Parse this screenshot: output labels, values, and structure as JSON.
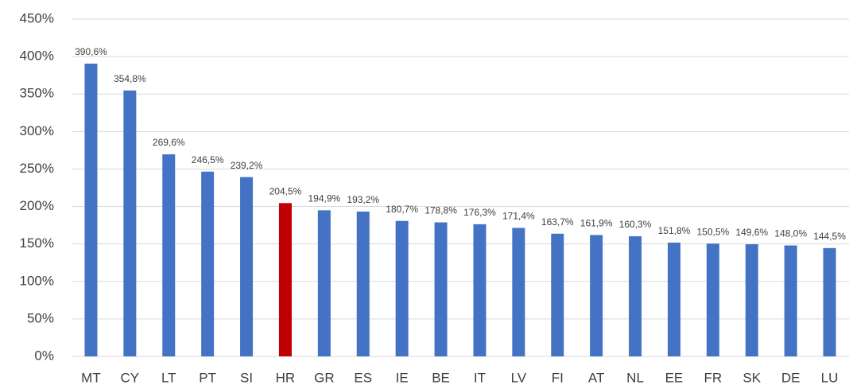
{
  "chart_data": {
    "type": "bar",
    "categories": [
      "MT",
      "CY",
      "LT",
      "PT",
      "SI",
      "HR",
      "GR",
      "ES",
      "IE",
      "BE",
      "IT",
      "LV",
      "FI",
      "AT",
      "NL",
      "EE",
      "FR",
      "SK",
      "DE",
      "LU"
    ],
    "values": [
      390.6,
      354.8,
      269.6,
      246.5,
      239.2,
      204.5,
      194.9,
      193.2,
      180.7,
      178.8,
      176.3,
      171.4,
      163.7,
      161.9,
      160.3,
      151.8,
      150.5,
      149.6,
      148.0,
      144.5
    ],
    "value_labels": [
      "390,6%",
      "354,8%",
      "269,6%",
      "246,5%",
      "239,2%",
      "204,5%",
      "194,9%",
      "193,2%",
      "180,7%",
      "178,8%",
      "176,3%",
      "171,4%",
      "163,7%",
      "161,9%",
      "160,3%",
      "151,8%",
      "150,5%",
      "149,6%",
      "148,0%",
      "144,5%"
    ],
    "colors": [
      "#4472c4",
      "#4472c4",
      "#4472c4",
      "#4472c4",
      "#4472c4",
      "#c00000",
      "#4472c4",
      "#4472c4",
      "#4472c4",
      "#4472c4",
      "#4472c4",
      "#4472c4",
      "#4472c4",
      "#4472c4",
      "#4472c4",
      "#4472c4",
      "#4472c4",
      "#4472c4",
      "#4472c4",
      "#4472c4"
    ],
    "ylim": [
      0,
      450
    ],
    "yticks": [
      {
        "value": 0,
        "label": "0%"
      },
      {
        "value": 50,
        "label": "50%"
      },
      {
        "value": 100,
        "label": "100%"
      },
      {
        "value": 150,
        "label": "150%"
      },
      {
        "value": 200,
        "label": "200%"
      },
      {
        "value": 250,
        "label": "250%"
      },
      {
        "value": 300,
        "label": "300%"
      },
      {
        "value": 350,
        "label": "350%"
      },
      {
        "value": 400,
        "label": "400%"
      },
      {
        "value": 450,
        "label": "450%"
      }
    ],
    "grid": true
  }
}
